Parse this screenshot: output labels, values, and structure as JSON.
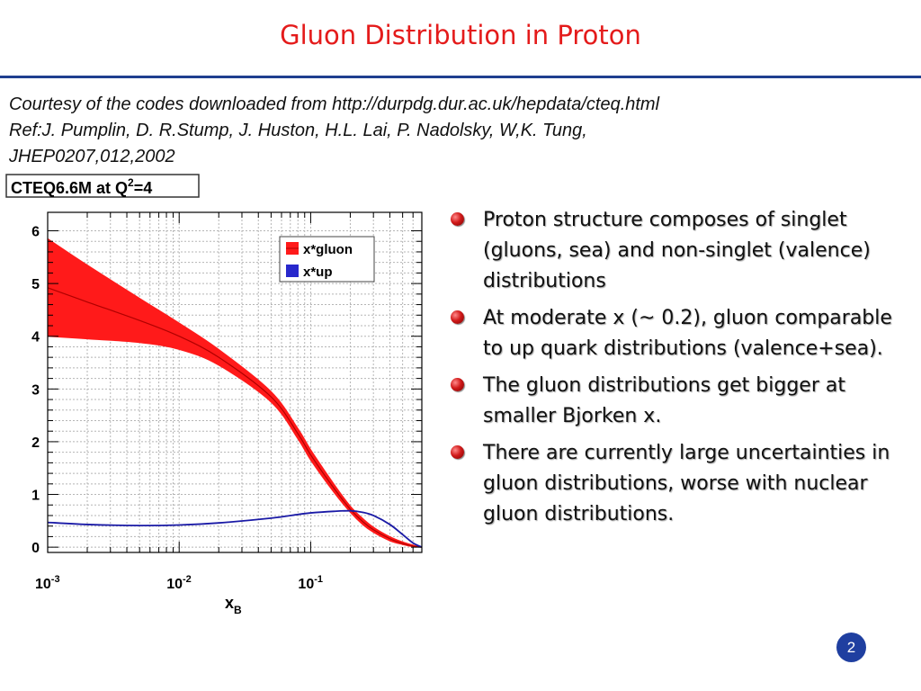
{
  "slide": {
    "title": "Gluon Distribution in Proton",
    "courtesy_lines": [
      "Courtesy of the codes downloaded from  http://durpdg.dur.ac.uk/hepdata/cteq.html",
      "Ref:J. Pumplin, D. R.Stump, J. Huston, H.L. Lai, P. Nadolsky, W,K. Tung,",
      "JHEP0207,012,2002"
    ],
    "bullets": [
      "Proton structure composes of singlet (gluons, sea) and non-singlet (valence) distributions",
      "At moderate x (~ 0.2), gluon comparable to up quark distributions (valence+sea).",
      "The gluon distributions get bigger at smaller Bjorken x.",
      "There  are currently large uncertainties in gluon distributions, worse with nuclear gluon distributions."
    ],
    "page_number": "2"
  },
  "chart_data": {
    "type": "line",
    "title_main": "CTEQ6.6M at Q",
    "title_sup": "2",
    "title_tail": "=4",
    "xlabel_main": "x",
    "xlabel_sub": "B",
    "ylabel": "",
    "x_scale": "log",
    "xlim": [
      0.001,
      0.7
    ],
    "ylim": [
      -0.1,
      6.35
    ],
    "grid": true,
    "legend_position": "top-right",
    "x_ticks": [
      {
        "base": "10",
        "exp": "-3"
      },
      {
        "base": "10",
        "exp": "-2"
      },
      {
        "base": "10",
        "exp": "-1"
      }
    ],
    "y_ticks": [
      "0",
      "1",
      "2",
      "3",
      "4",
      "5",
      "6"
    ],
    "colors": {
      "band": "#ff1a1a",
      "gluon_line": "#b00000",
      "up_line": "#1a1aa6",
      "up_legend": "#2828cc"
    },
    "series": [
      {
        "name": "x*gluon",
        "x": [
          0.001,
          0.002,
          0.005,
          0.01,
          0.02,
          0.05,
          0.08,
          0.1,
          0.15,
          0.2,
          0.25,
          0.3,
          0.4,
          0.5,
          0.6,
          0.7
        ],
        "values": [
          4.92,
          4.65,
          4.3,
          4.0,
          3.6,
          2.85,
          2.15,
          1.75,
          1.12,
          0.72,
          0.48,
          0.33,
          0.16,
          0.07,
          0.02,
          0.0
        ],
        "upper": [
          5.85,
          5.35,
          4.72,
          4.25,
          3.75,
          2.95,
          2.25,
          1.85,
          1.2,
          0.78,
          0.54,
          0.38,
          0.2,
          0.1,
          0.04,
          0.0
        ],
        "lower": [
          4.0,
          3.95,
          3.88,
          3.75,
          3.45,
          2.75,
          2.05,
          1.65,
          1.04,
          0.66,
          0.42,
          0.28,
          0.12,
          0.05,
          0.01,
          0.0
        ]
      },
      {
        "name": "x*up",
        "x": [
          0.001,
          0.002,
          0.005,
          0.01,
          0.02,
          0.05,
          0.08,
          0.1,
          0.15,
          0.2,
          0.25,
          0.3,
          0.4,
          0.5,
          0.6,
          0.7
        ],
        "values": [
          0.47,
          0.43,
          0.41,
          0.42,
          0.46,
          0.55,
          0.62,
          0.65,
          0.68,
          0.69,
          0.66,
          0.6,
          0.43,
          0.24,
          0.08,
          0.0
        ]
      }
    ]
  }
}
